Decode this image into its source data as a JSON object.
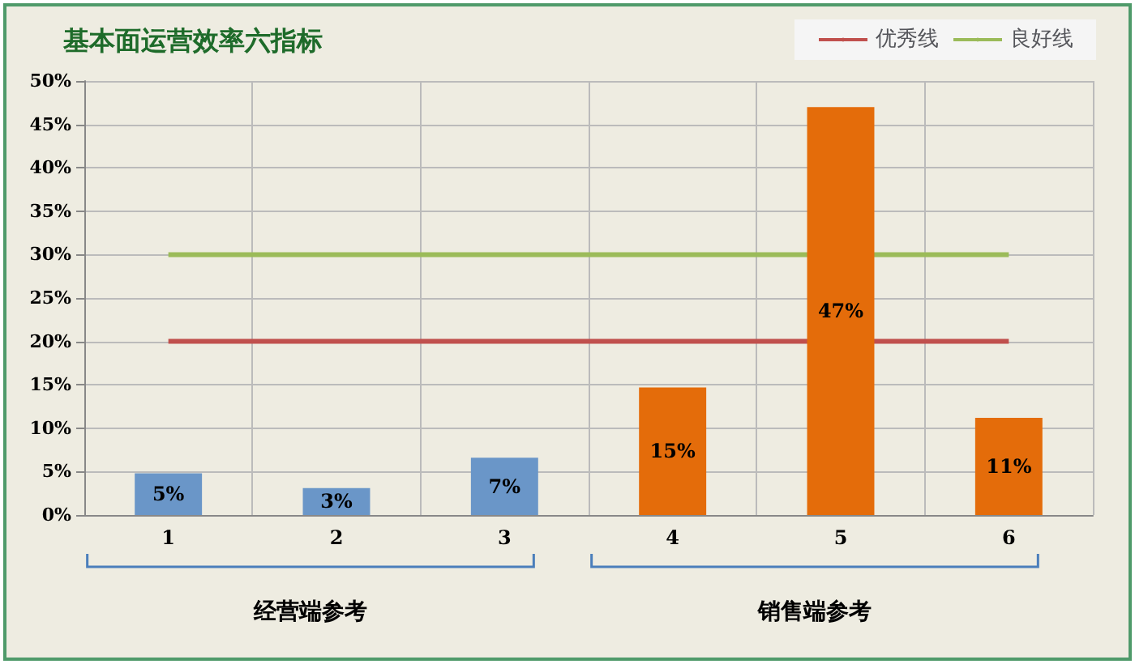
{
  "chart_data": {
    "type": "bar",
    "title": "基本面运营效率六指标",
    "categories": [
      "1",
      "2",
      "3",
      "4",
      "5",
      "6"
    ],
    "values": [
      4.8,
      3.1,
      6.6,
      14.7,
      47,
      11.2
    ],
    "colors": [
      "#6a96c8",
      "#6a96c8",
      "#6a96c8",
      "#e46c0a",
      "#e46c0a",
      "#e46c0a"
    ],
    "value_labels": [
      "5%",
      "3%",
      "7%",
      "15%",
      "47%",
      "11%"
    ],
    "ylim": [
      0,
      50
    ],
    "yticks": [
      {
        "value": 0,
        "label": "0%"
      },
      {
        "value": 5,
        "label": "5%"
      },
      {
        "value": 10,
        "label": "10%"
      },
      {
        "value": 15,
        "label": "15%"
      },
      {
        "value": 20,
        "label": "20%"
      },
      {
        "value": 25,
        "label": "25%"
      },
      {
        "value": 30,
        "label": "30%"
      },
      {
        "value": 35,
        "label": "35%"
      },
      {
        "value": 40,
        "label": "40%"
      },
      {
        "value": 45,
        "label": "45%"
      },
      {
        "value": 50,
        "label": "50%"
      }
    ],
    "ref_lines": [
      {
        "axis": "y",
        "value": 20,
        "label": "优秀线",
        "color": "#c0504d"
      },
      {
        "axis": "y",
        "value": 30,
        "label": "良好线",
        "color": "#9bbb59"
      }
    ],
    "annotations": [
      "经营端参考",
      "销售端参考"
    ],
    "grid": true,
    "legend": "top right"
  }
}
